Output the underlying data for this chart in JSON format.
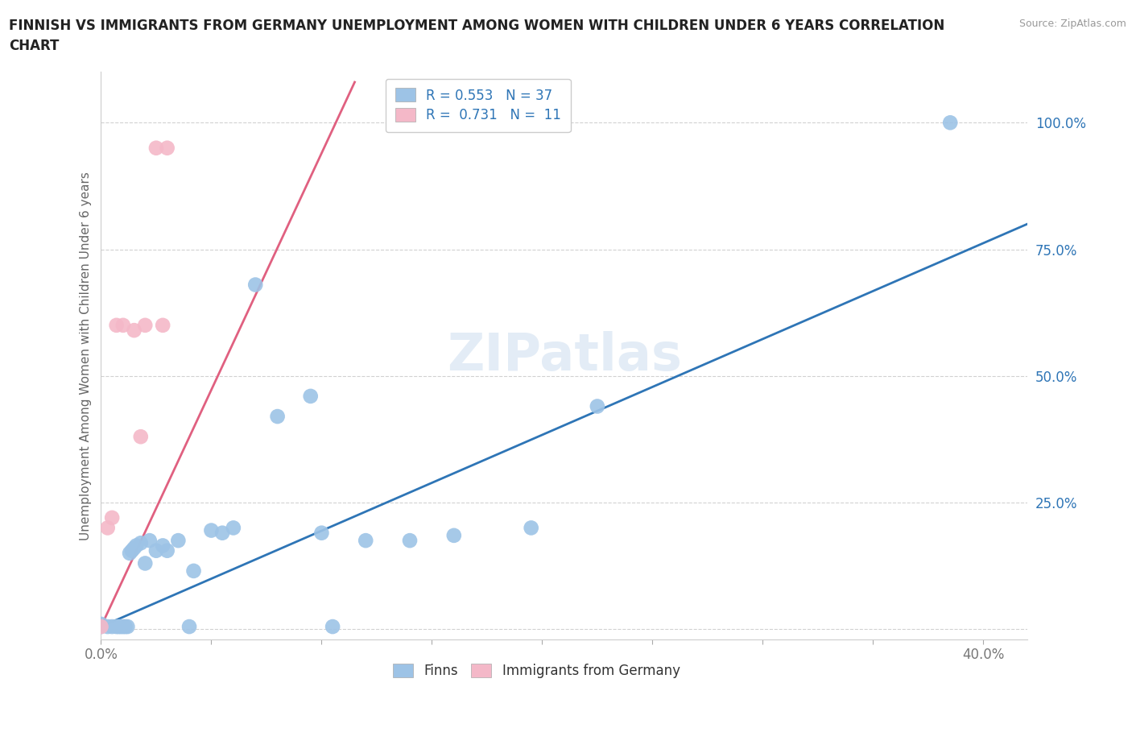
{
  "title_line1": "FINNISH VS IMMIGRANTS FROM GERMANY UNEMPLOYMENT AMONG WOMEN WITH CHILDREN UNDER 6 YEARS CORRELATION",
  "title_line2": "CHART",
  "source": "Source: ZipAtlas.com",
  "ylabel_text": "Unemployment Among Women with Children Under 6 years",
  "xlim": [
    0.0,
    0.42
  ],
  "ylim": [
    -0.02,
    1.1
  ],
  "x_ticks": [
    0.0,
    0.05,
    0.1,
    0.15,
    0.2,
    0.25,
    0.3,
    0.35,
    0.4
  ],
  "x_tick_labels": [
    "0.0%",
    "",
    "",
    "",
    "",
    "",
    "",
    "",
    "40.0%"
  ],
  "y_ticks": [
    0.0,
    0.25,
    0.5,
    0.75,
    1.0
  ],
  "y_tick_labels": [
    "",
    "25.0%",
    "50.0%",
    "75.0%",
    "100.0%"
  ],
  "finn_color": "#9dc3e6",
  "immigrant_color": "#f4b8c8",
  "finn_line_color": "#2e75b6",
  "immigrant_line_color": "#e06080",
  "legend_finn_R": "0.553",
  "legend_finn_N": "37",
  "legend_imm_R": "0.731",
  "legend_imm_N": "11",
  "finns_x": [
    0.0,
    0.0,
    0.003,
    0.005,
    0.007,
    0.008,
    0.009,
    0.01,
    0.011,
    0.012,
    0.013,
    0.014,
    0.015,
    0.016,
    0.018,
    0.02,
    0.022,
    0.025,
    0.028,
    0.03,
    0.035,
    0.04,
    0.042,
    0.05,
    0.055,
    0.06,
    0.07,
    0.08,
    0.095,
    0.1,
    0.105,
    0.12,
    0.14,
    0.16,
    0.195,
    0.225,
    0.385
  ],
  "finns_y": [
    0.005,
    0.01,
    0.005,
    0.005,
    0.005,
    0.005,
    0.005,
    0.005,
    0.005,
    0.005,
    0.15,
    0.155,
    0.16,
    0.165,
    0.17,
    0.13,
    0.175,
    0.155,
    0.165,
    0.155,
    0.175,
    0.005,
    0.115,
    0.195,
    0.19,
    0.2,
    0.68,
    0.42,
    0.46,
    0.19,
    0.005,
    0.175,
    0.175,
    0.185,
    0.2,
    0.44,
    1.0
  ],
  "immigrants_x": [
    0.0,
    0.003,
    0.005,
    0.007,
    0.01,
    0.015,
    0.018,
    0.02,
    0.025,
    0.028,
    0.03
  ],
  "immigrants_y": [
    0.005,
    0.2,
    0.22,
    0.6,
    0.6,
    0.59,
    0.38,
    0.6,
    0.95,
    0.6,
    0.95
  ],
  "finn_trendline_x": [
    0.0,
    0.42
  ],
  "finn_trendline_y": [
    0.005,
    0.8
  ],
  "immigrant_trendline_x": [
    0.0,
    0.115
  ],
  "immigrant_trendline_y": [
    0.005,
    1.08
  ]
}
